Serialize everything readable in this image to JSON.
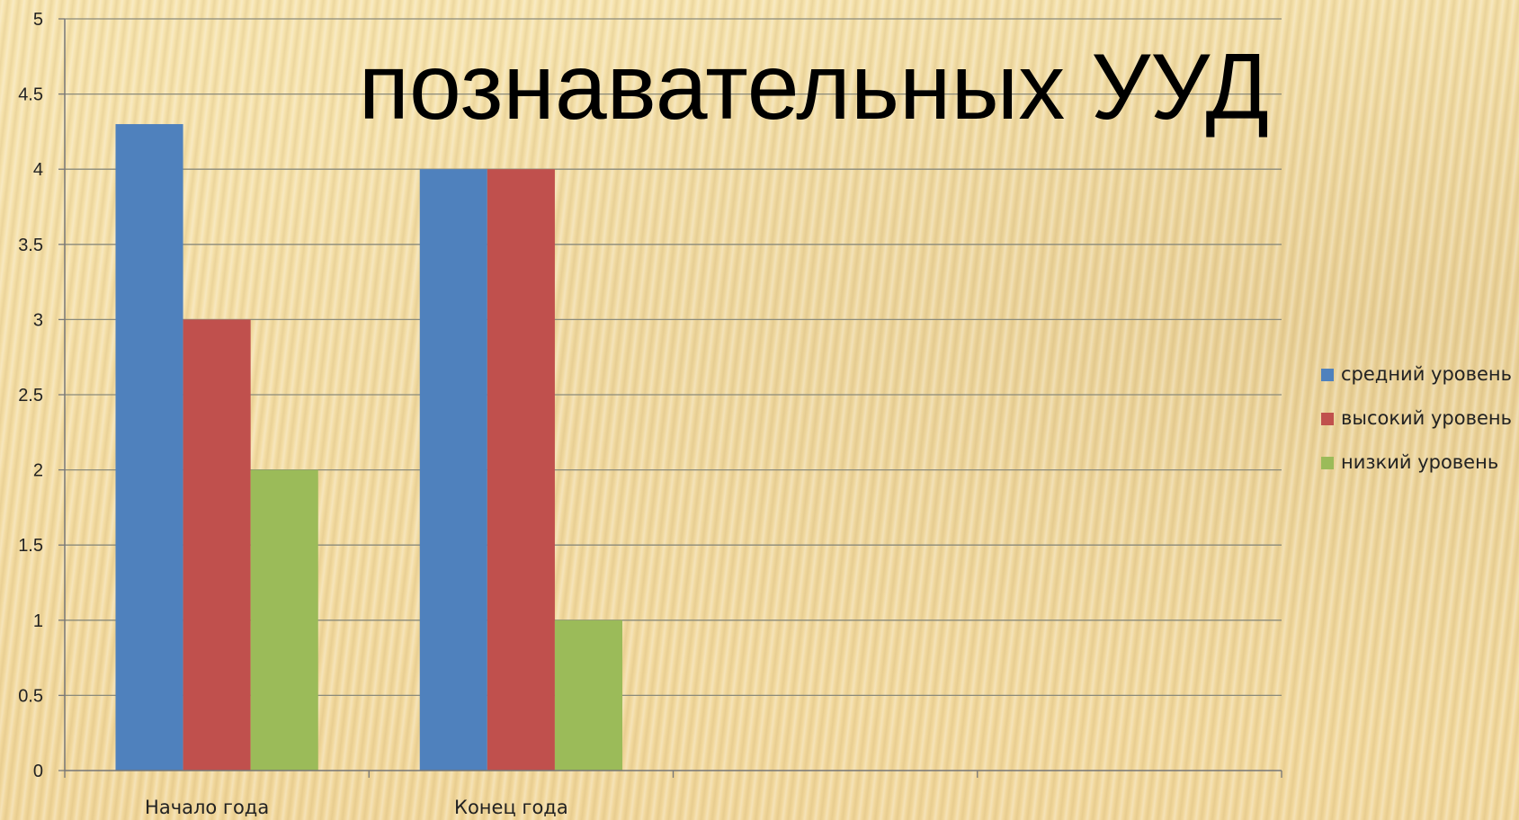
{
  "chart_data": {
    "type": "bar",
    "title": "познавательных УУД",
    "categories": [
      "Начало года",
      "Конец года",
      "",
      ""
    ],
    "series": [
      {
        "name": "средний уровень",
        "values": [
          4.3,
          4,
          null,
          null
        ],
        "color": "#4f81bd"
      },
      {
        "name": "высокий уровень",
        "values": [
          3,
          4,
          null,
          null
        ],
        "color": "#c0504d"
      },
      {
        "name": "низкий уровень",
        "values": [
          2,
          1,
          null,
          null
        ],
        "color": "#9bbb59"
      }
    ],
    "ylim": [
      0,
      5
    ],
    "yticks": [
      "0",
      "0.5",
      "1",
      "1.5",
      "2",
      "2.5",
      "3",
      "3.5",
      "4",
      "4.5",
      "5"
    ],
    "grid": true,
    "legend": "right",
    "xlabel": "",
    "ylabel": ""
  }
}
